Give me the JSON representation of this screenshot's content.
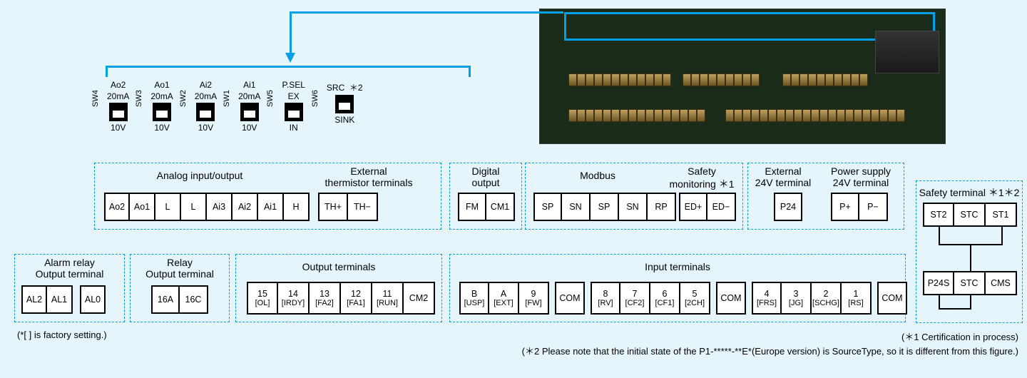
{
  "colors": {
    "accent": "#00a0e9",
    "bg": "#e6f5fb",
    "pcb": "#1a2b1a"
  },
  "switches": [
    {
      "side": "SW4",
      "top": "Ao2",
      "pos_top": "20mA",
      "pos_bot": "10V",
      "slider": "bottom",
      "note": ""
    },
    {
      "side": "SW3",
      "top": "Ao1",
      "pos_top": "20mA",
      "pos_bot": "10V",
      "slider": "bottom",
      "note": ""
    },
    {
      "side": "SW2",
      "top": "Ai2",
      "pos_top": "20mA",
      "pos_bot": "10V",
      "slider": "bottom",
      "note": ""
    },
    {
      "side": "SW1",
      "top": "Ai1",
      "pos_top": "20mA",
      "pos_bot": "10V",
      "slider": "bottom",
      "note": ""
    },
    {
      "side": "SW5",
      "top": "P.SEL",
      "pos_top": "EX",
      "pos_bot": "IN",
      "slider": "bottom",
      "note": ""
    },
    {
      "side": "SW6",
      "top": "",
      "pos_top": "SRC",
      "pos_bot": "SINK",
      "slider": "bottom",
      "note": "＊2"
    }
  ],
  "analog": {
    "label": "Analog input/output",
    "thermistor_label": "External\nthermistor terminals",
    "cells": [
      "Ao2",
      "Ao1",
      "L",
      "L",
      "Ai3",
      "Ai2",
      "Ai1",
      "H",
      "TH+",
      "TH−"
    ]
  },
  "digital_output": {
    "label": "Digital\noutput",
    "cells": [
      "FM",
      "CM1"
    ]
  },
  "modbus": {
    "label": "Modbus",
    "cells": [
      "SP",
      "SN",
      "SP",
      "SN",
      "RP"
    ]
  },
  "safety_mon": {
    "label": "Safety\nmonitoring ＊1",
    "cells": [
      "ED+",
      "ED−"
    ]
  },
  "ext24": {
    "label": "External\n24V terminal",
    "cells": [
      "P24"
    ]
  },
  "psu24": {
    "label": "Power supply\n24V terminal",
    "cells": [
      "P+",
      "P−"
    ]
  },
  "alarm": {
    "label": "Alarm relay\nOutput terminal",
    "cells": [
      [
        "AL2",
        "AL1"
      ],
      [
        "AL0"
      ]
    ]
  },
  "relay": {
    "label": "Relay\nOutput terminal",
    "cells": [
      "16A",
      "16C"
    ]
  },
  "output_terms": {
    "label": "Output terminals",
    "cells": [
      {
        "n": "15",
        "s": "[OL]"
      },
      {
        "n": "14",
        "s": "[IRDY]"
      },
      {
        "n": "13",
        "s": "[FA2]"
      },
      {
        "n": "12",
        "s": "[FA1]"
      },
      {
        "n": "11",
        "s": "[RUN]"
      },
      {
        "n": "CM2",
        "s": ""
      }
    ]
  },
  "input_terms": {
    "label": "Input terminals",
    "groups": [
      [
        {
          "n": "B",
          "s": "[USP]"
        },
        {
          "n": "A",
          "s": "[EXT]"
        },
        {
          "n": "9",
          "s": "[FW]"
        }
      ],
      [
        {
          "n": "COM",
          "s": ""
        }
      ],
      [
        {
          "n": "8",
          "s": "[RV]"
        },
        {
          "n": "7",
          "s": "[CF2]"
        },
        {
          "n": "6",
          "s": "[CF1]"
        },
        {
          "n": "5",
          "s": "[2CH]"
        }
      ],
      [
        {
          "n": "COM",
          "s": ""
        }
      ],
      [
        {
          "n": "4",
          "s": "[FRS]"
        },
        {
          "n": "3",
          "s": "[JG]"
        },
        {
          "n": "2",
          "s": "[SCHG]"
        },
        {
          "n": "1",
          "s": "[RS]"
        }
      ],
      [
        {
          "n": "COM",
          "s": ""
        }
      ]
    ]
  },
  "safety_term": {
    "label": "Safety terminal ＊1＊2",
    "top": [
      "ST2",
      "STC",
      "ST1"
    ],
    "bot": [
      "P24S",
      "STC",
      "CMS"
    ]
  },
  "footnotes": {
    "left": "(*[ ] is factory setting.)",
    "right1": "(＊1 Certification in process)",
    "right2": "(＊2 Please note that the initial state of the P1-*****-**E*(Europe version) is SourceType, so it is different from this figure.)"
  }
}
